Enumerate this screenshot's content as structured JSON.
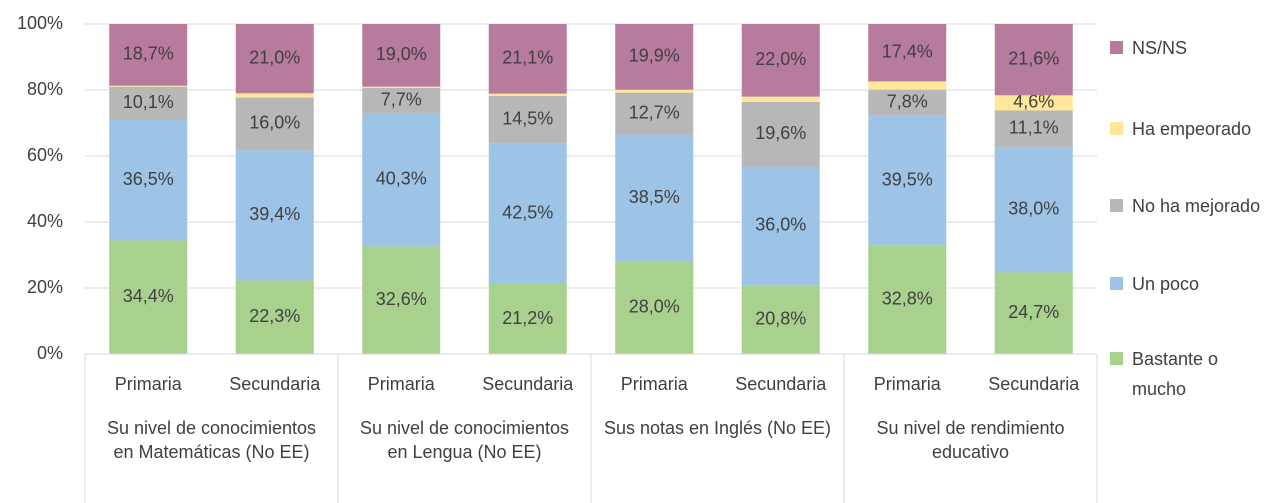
{
  "chart_data": {
    "type": "stacked_bar",
    "groups": [
      "Su nivel de conocimientos en Matemáticas (No EE)",
      "Su nivel de conocimientos en Lengua (No EE)",
      "Sus notas en Inglés (No EE)",
      "Su nivel de rendimiento educativo"
    ],
    "categories": [
      "Primaria",
      "Secundaria",
      "Primaria",
      "Secundaria",
      "Primaria",
      "Secundaria",
      "Primaria",
      "Secundaria"
    ],
    "series": [
      {
        "name": "Bastante o mucho",
        "color": "#a9d18e",
        "values": [
          34.4,
          22.3,
          32.6,
          21.2,
          28.0,
          20.8,
          32.8,
          24.7
        ],
        "value_labels": [
          "34,4%",
          "22,3%",
          "32,6%",
          "21,2%",
          "28,0%",
          "20,8%",
          "32,8%",
          "24,7%"
        ]
      },
      {
        "name": "Un poco",
        "color": "#9dc3e6",
        "values": [
          36.5,
          39.4,
          40.3,
          42.5,
          38.5,
          36.0,
          39.5,
          38.0
        ],
        "value_labels": [
          "36,5%",
          "39,4%",
          "40,3%",
          "42,5%",
          "38,5%",
          "36,0%",
          "39,5%",
          "38,0%"
        ]
      },
      {
        "name": "No ha mejorado",
        "color": "#b7b7b7",
        "values": [
          10.1,
          16.0,
          7.7,
          14.5,
          12.7,
          19.6,
          7.8,
          11.1
        ],
        "value_labels": [
          "10,1%",
          "16,0%",
          "7,7%",
          "14,5%",
          "12,7%",
          "19,6%",
          "7,8%",
          "11,1%"
        ]
      },
      {
        "name": "Ha empeorado",
        "color": "#ffe699",
        "values": [
          0.3,
          1.3,
          0.4,
          0.7,
          0.9,
          1.6,
          2.5,
          4.6
        ],
        "value_labels": [
          null,
          null,
          null,
          null,
          null,
          null,
          null,
          "4,6%"
        ]
      },
      {
        "name": "NS/NS",
        "color": "#b77b9d",
        "values": [
          18.7,
          21.0,
          19.0,
          21.1,
          19.9,
          22.0,
          17.4,
          21.6
        ],
        "value_labels": [
          "18,7%",
          "21,0%",
          "19,0%",
          "21,1%",
          "19,9%",
          "22,0%",
          "17,4%",
          "21,6%"
        ]
      }
    ],
    "ylim": [
      0,
      100
    ],
    "yticks": [
      {
        "value": 0,
        "label": "0%"
      },
      {
        "value": 20,
        "label": "20%"
      },
      {
        "value": 40,
        "label": "40%"
      },
      {
        "value": 60,
        "label": "60%"
      },
      {
        "value": 80,
        "label": "80%"
      },
      {
        "value": 100,
        "label": "100%"
      }
    ],
    "legend": "right"
  }
}
